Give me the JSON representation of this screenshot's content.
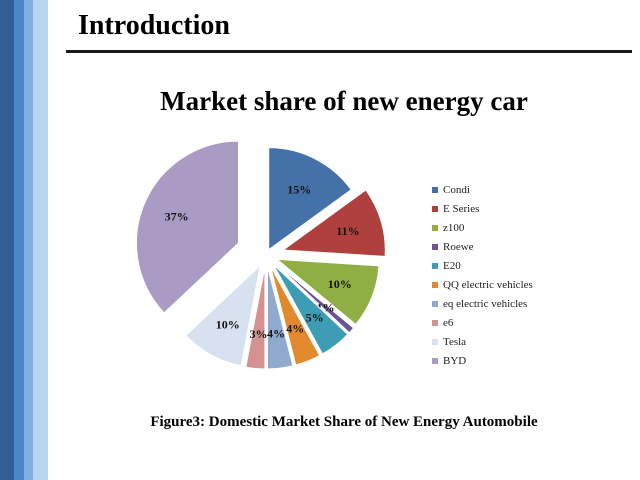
{
  "slide": {
    "title": "Introduction"
  },
  "caption": "Figure3: Domestic Market Share of New Energy Automobile",
  "chart_data": {
    "type": "pie",
    "title": "Market share of new energy car",
    "legend_position": "right",
    "slices": [
      {
        "label": "Condi",
        "value": 15,
        "display": "15%",
        "color": "#4472a8"
      },
      {
        "label": "E Series",
        "value": 11,
        "display": "11%",
        "color": "#b0403d"
      },
      {
        "label": "z100",
        "value": 10,
        "display": "10%",
        "color": "#8fae43"
      },
      {
        "label": "Roewe",
        "value": 1,
        "display": "1%",
        "color": "#6a5690"
      },
      {
        "label": "E20",
        "value": 5,
        "display": "5%",
        "color": "#3d9db4"
      },
      {
        "label": "QQ electric vehicles",
        "value": 4,
        "display": "4%",
        "color": "#e3892d"
      },
      {
        "label": "eq electric vehicles",
        "value": 4,
        "display": "4%",
        "color": "#8fa9cf"
      },
      {
        "label": "e6",
        "value": 3,
        "display": "3%",
        "color": "#d39291"
      },
      {
        "label": "Tesla",
        "value": 10,
        "display": "10%",
        "color": "#d8e1f0"
      },
      {
        "label": "BYD",
        "value": 37,
        "display": "37%",
        "color": "#a99bc4"
      }
    ]
  }
}
